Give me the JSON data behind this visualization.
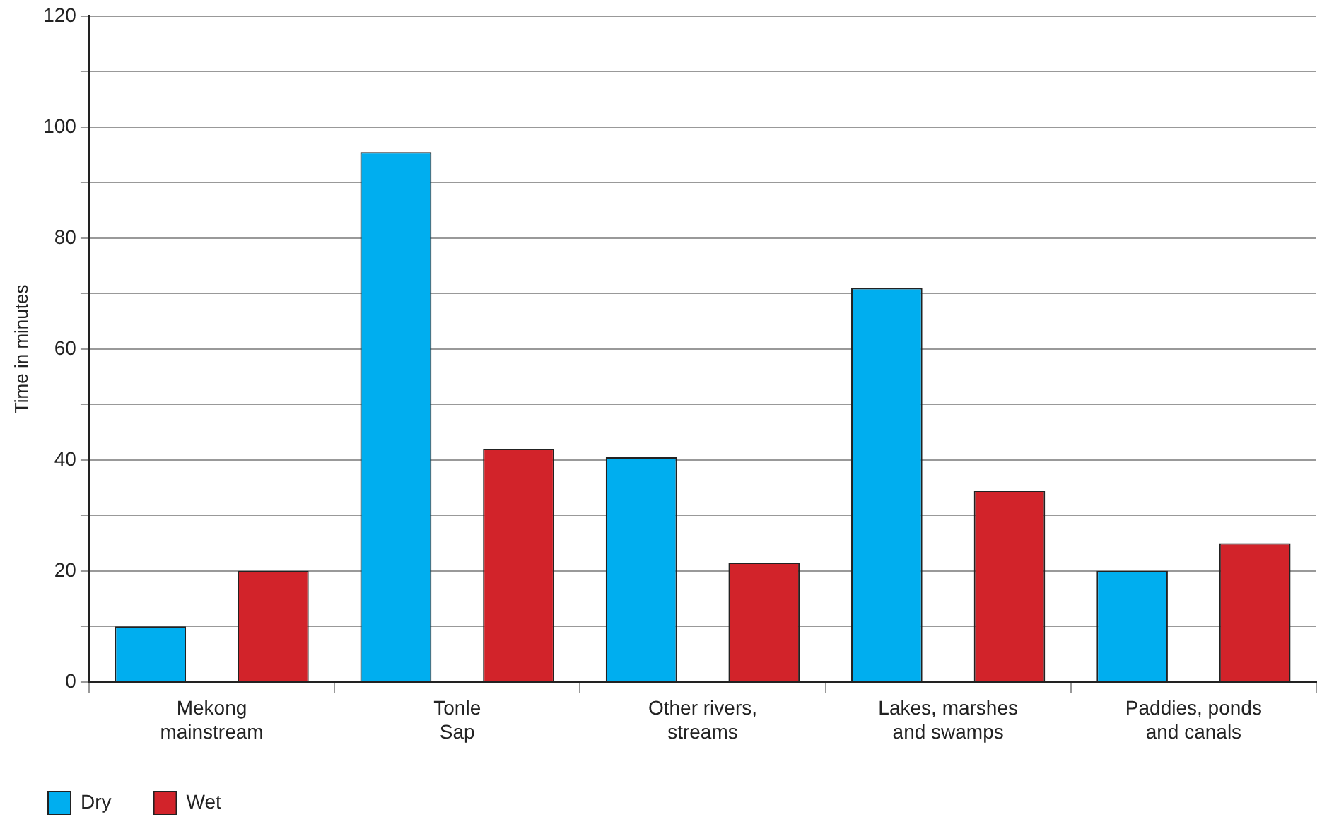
{
  "chart_data": {
    "type": "bar",
    "ylabel": "Time in minutes",
    "categories": [
      "Mekong mainstream",
      "Tonle Sap",
      "Other rivers, streams",
      "Lakes, marshes and swamps",
      "Paddies, ponds and canals"
    ],
    "series": [
      {
        "name": "Dry",
        "color": "#00aeef",
        "values": [
          10,
          95.5,
          40.5,
          71,
          20
        ]
      },
      {
        "name": "Wet",
        "color": "#d2232a",
        "values": [
          20,
          42,
          21.5,
          34.5,
          25
        ]
      }
    ],
    "ylim": [
      0,
      120
    ],
    "yticks": [
      0,
      {
        "value": 10,
        "label": null
      },
      20,
      {
        "value": 30,
        "label": null
      },
      40,
      {
        "value": 50,
        "label": null
      },
      60,
      {
        "value": 70,
        "label": null
      },
      80,
      {
        "value": 90,
        "label": null
      },
      100,
      {
        "value": 110,
        "label": null
      },
      120
    ],
    "grid": "y",
    "legend": "bottom left"
  }
}
